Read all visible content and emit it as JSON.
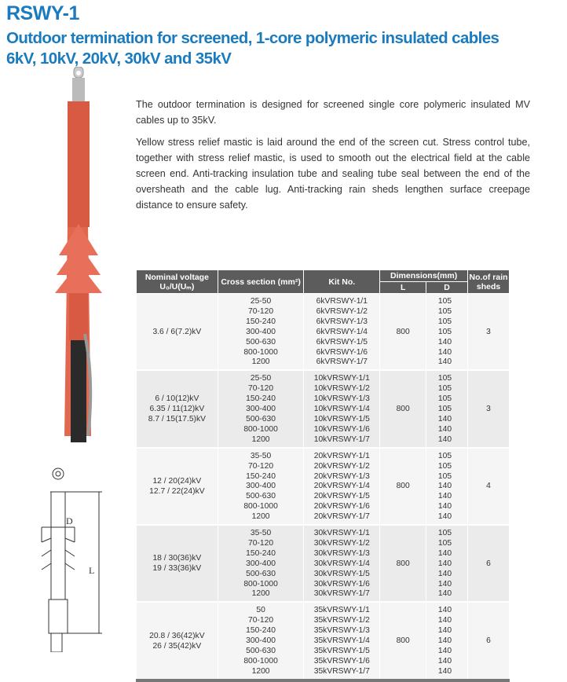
{
  "header": {
    "model": "RSWY-1",
    "title": "Outdoor termination for screened, 1-core polymeric insulated cables",
    "voltages": "6kV, 10kV, 20kV, 30kV and 35kV",
    "title_color": "#1a7bbf"
  },
  "description": [
    "The outdoor termination is designed for screened single core polymeric insulated MV cables up to 35kV.",
    "Yellow stress relief mastic is laid around the end of the screen cut. Stress control tube, together with stress relief mastic, is used to smooth out the electrical field at the cable screen end. Anti-tracking insulation tube and sealing tube seal between the end of the oversheath and the cable lug. Anti-tracking rain sheds lengthen surface creepage distance to ensure safety."
  ],
  "drawing": {
    "label_d": "D",
    "label_l": "L"
  },
  "table": {
    "headers": {
      "voltage": "Nominal voltage",
      "voltage_sub": "U₀/U(Uₘ)",
      "cross": "Cross section  (mm²)",
      "kit": "Kit No.",
      "dims": "Dimensions(mm)",
      "l": "L",
      "d": "D",
      "sheds": "No.of rain sheds"
    },
    "groups": [
      {
        "voltage": [
          "3.6 / 6(7.2)kV"
        ],
        "cross": [
          "25-50",
          "70-120",
          "150-240",
          "300-400",
          "500-630",
          "800-1000",
          "1200"
        ],
        "kits": [
          "6kVRSWY-1/1",
          "6kVRSWY-1/2",
          "6kVRSWY-1/3",
          "6kVRSWY-1/4",
          "6kVRSWY-1/5",
          "6kVRSWY-1/6",
          "6kVRSWY-1/7"
        ],
        "L": "800",
        "D": [
          "105",
          "105",
          "105",
          "105",
          "140",
          "140",
          "140"
        ],
        "sheds": "3"
      },
      {
        "voltage": [
          "6 / 10(12)kV",
          "6.35 / 11(12)kV",
          "8.7 / 15(17.5)kV"
        ],
        "cross": [
          "25-50",
          "70-120",
          "150-240",
          "300-400",
          "500-630",
          "800-1000",
          "1200"
        ],
        "kits": [
          "10kVRSWY-1/1",
          "10kVRSWY-1/2",
          "10kVRSWY-1/3",
          "10kVRSWY-1/4",
          "10kVRSWY-1/5",
          "10kVRSWY-1/6",
          "10kVRSWY-1/7"
        ],
        "L": "800",
        "D": [
          "105",
          "105",
          "105",
          "105",
          "140",
          "140",
          "140"
        ],
        "sheds": "3"
      },
      {
        "voltage": [
          "12 / 20(24)kV",
          "12.7 / 22(24)kV"
        ],
        "cross": [
          "35-50",
          "70-120",
          "150-240",
          "300-400",
          "500-630",
          "800-1000",
          "1200"
        ],
        "kits": [
          "20kVRSWY-1/1",
          "20kVRSWY-1/2",
          "20kVRSWY-1/3",
          "20kVRSWY-1/4",
          "20kVRSWY-1/5",
          "20kVRSWY-1/6",
          "20kVRSWY-1/7"
        ],
        "L": "800",
        "D": [
          "105",
          "105",
          "105",
          "140",
          "140",
          "140",
          "140"
        ],
        "sheds": "4"
      },
      {
        "voltage": [
          "18 / 30(36)kV",
          "19 / 33(36)kV"
        ],
        "cross": [
          "35-50",
          "70-120",
          "150-240",
          "300-400",
          "500-630",
          "800-1000",
          "1200"
        ],
        "kits": [
          "30kVRSWY-1/1",
          "30kVRSWY-1/2",
          "30kVRSWY-1/3",
          "30kVRSWY-1/4",
          "30kVRSWY-1/5",
          "30kVRSWY-1/6",
          "30kVRSWY-1/7"
        ],
        "L": "800",
        "D": [
          "105",
          "105",
          "140",
          "140",
          "140",
          "140",
          "140"
        ],
        "sheds": "6"
      },
      {
        "voltage": [
          "20.8 / 36(42)kV",
          "26 / 35(42)kV"
        ],
        "cross": [
          "50",
          "70-120",
          "150-240",
          "300-400",
          "500-630",
          "800-1000",
          "1200"
        ],
        "kits": [
          "35kVRSWY-1/1",
          "35kVRSWY-1/2",
          "35kVRSWY-1/3",
          "35kVRSWY-1/4",
          "35kVRSWY-1/5",
          "35kVRSWY-1/6",
          "35kVRSWY-1/7"
        ],
        "L": "800",
        "D": [
          "140",
          "140",
          "140",
          "140",
          "140",
          "140",
          "140"
        ],
        "sheds": "6"
      }
    ]
  }
}
